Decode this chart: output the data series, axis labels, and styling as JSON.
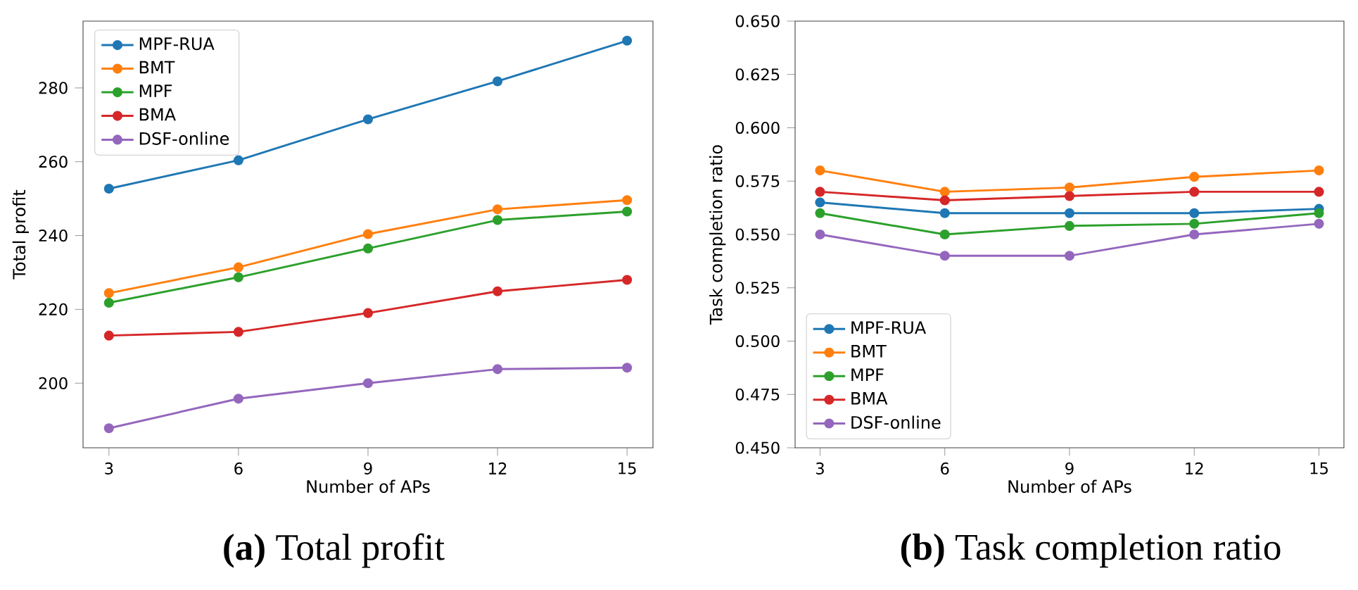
{
  "chart_data": [
    {
      "type": "line",
      "title": "**(a)** Total profit",
      "xlabel": "Number of APs",
      "ylabel": "Total profit",
      "x": [
        3,
        6,
        9,
        12,
        15
      ],
      "xlim": [
        2.4,
        15.6
      ],
      "xticks": [
        3,
        6,
        9,
        12,
        15
      ],
      "ylim": [
        182.5,
        298.1
      ],
      "yticks": [
        200,
        220,
        240,
        260,
        280
      ],
      "legend": "top left",
      "marker": "circle",
      "line_style": "solid",
      "grid": false,
      "series": [
        {
          "name": "MPF-RUA",
          "color": "#1f77b4",
          "values": [
            252.7,
            260.4,
            271.5,
            281.8,
            292.8
          ]
        },
        {
          "name": "BMT",
          "color": "#ff7f0e",
          "values": [
            224.4,
            231.4,
            240.4,
            247.1,
            249.6
          ]
        },
        {
          "name": "MPF",
          "color": "#2ca02c",
          "values": [
            221.8,
            228.7,
            236.5,
            244.2,
            246.5
          ]
        },
        {
          "name": "BMA",
          "color": "#d62728",
          "values": [
            212.9,
            213.9,
            219.0,
            224.9,
            228.0
          ]
        },
        {
          "name": "DSF-online",
          "color": "#9467bd",
          "values": [
            187.8,
            195.8,
            200.0,
            203.8,
            204.2
          ]
        }
      ]
    },
    {
      "type": "line",
      "title": "**(b)** Task completion ratio",
      "xlabel": "Number of APs",
      "ylabel": "Task completion ratio",
      "x": [
        3,
        6,
        9,
        12,
        15
      ],
      "xlim": [
        2.4,
        15.6
      ],
      "xticks": [
        3,
        6,
        9,
        12,
        15
      ],
      "ylim": [
        0.45,
        0.65
      ],
      "yticks": [
        {
          "value": 0.45,
          "label": "0.450"
        },
        {
          "value": 0.475,
          "label": "0.475"
        },
        {
          "value": 0.5,
          "label": "0.500"
        },
        {
          "value": 0.525,
          "label": "0.525"
        },
        {
          "value": 0.55,
          "label": "0.550"
        },
        {
          "value": 0.575,
          "label": "0.575"
        },
        {
          "value": 0.6,
          "label": "0.600"
        },
        {
          "value": 0.625,
          "label": "0.625"
        },
        {
          "value": 0.65,
          "label": "0.650"
        }
      ],
      "legend": "bottom left",
      "marker": "circle",
      "line_style": "solid",
      "grid": false,
      "series": [
        {
          "name": "MPF-RUA",
          "color": "#1f77b4",
          "values": [
            0.565,
            0.56,
            0.56,
            0.56,
            0.562
          ]
        },
        {
          "name": "BMT",
          "color": "#ff7f0e",
          "values": [
            0.58,
            0.57,
            0.572,
            0.577,
            0.58
          ]
        },
        {
          "name": "MPF",
          "color": "#2ca02c",
          "values": [
            0.56,
            0.55,
            0.554,
            0.555,
            0.56
          ]
        },
        {
          "name": "BMA",
          "color": "#d62728",
          "values": [
            0.57,
            0.566,
            0.568,
            0.57,
            0.57
          ]
        },
        {
          "name": "DSF-online",
          "color": "#9467bd",
          "values": [
            0.55,
            0.54,
            0.54,
            0.55,
            0.555
          ]
        }
      ]
    }
  ]
}
